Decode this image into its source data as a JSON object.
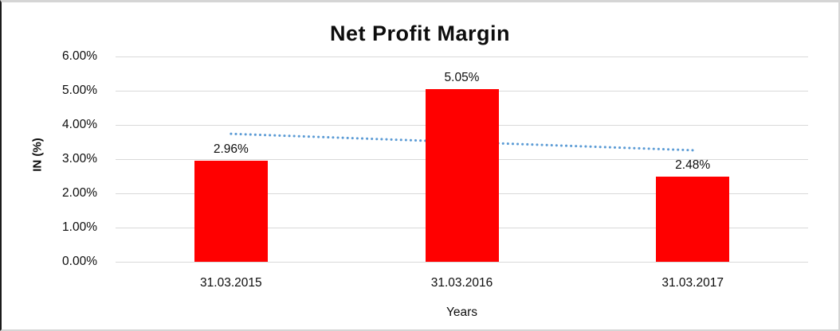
{
  "chart_data": {
    "type": "bar",
    "title": "Net Profit Margin",
    "xlabel": "Years",
    "ylabel": "IN (%)",
    "categories": [
      "31.03.2015",
      "31.03.2016",
      "31.03.2017"
    ],
    "series": [
      {
        "name": "Net Profit Margin",
        "values": [
          2.96,
          5.05,
          2.48
        ],
        "data_labels": [
          "2.96%",
          "5.05%",
          "2.48%"
        ],
        "color": "#ff0000"
      }
    ],
    "ylim": [
      0,
      6
    ],
    "ytick_step": 1,
    "ytick_labels": [
      "0.00%",
      "1.00%",
      "2.00%",
      "3.00%",
      "4.00%",
      "5.00%",
      "6.00%"
    ],
    "grid": true,
    "legend": "none",
    "gridline_color": "#d9d9d9",
    "trendline": {
      "type": "linear",
      "style": "dotted",
      "color": "#5b9bd5",
      "start_value": 3.74,
      "end_value": 3.26
    }
  }
}
